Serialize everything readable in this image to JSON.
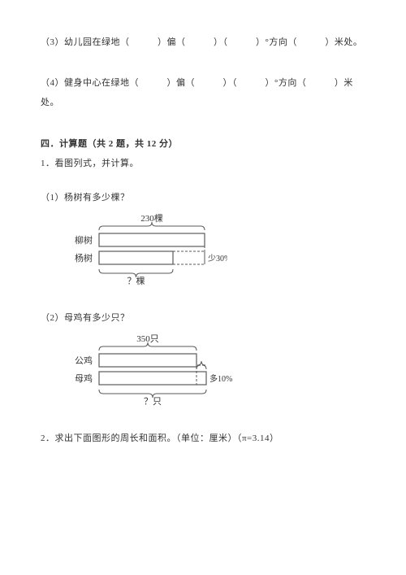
{
  "q3": {
    "prefix": "（3）幼儿园在绿地（",
    "seg1": "）偏（",
    "seg2": "）（",
    "seg3": "）°方向（",
    "seg4": "）米处。"
  },
  "q4": {
    "prefix": "（4）健身中心在绿地（",
    "seg1": "）偏（",
    "seg2": "）（",
    "seg3": "）°方向（",
    "seg4": "）米",
    "tail": "处。"
  },
  "section4": {
    "title": "四．计算题（共 2 题，共 12 分）",
    "p1": "1．看图列式，并计算。",
    "sub1": "（1）杨树有多少棵？",
    "sub2": "（2）母鸡有多少只？",
    "p2": "2．求出下面图形的周长和面积。（单位：厘米）（π=3.14）"
  },
  "diagram1": {
    "top_label": "230棵",
    "left1": "柳树",
    "left2": "杨树",
    "reduce": "少30%",
    "bottom": "？棵",
    "colors": {
      "line": "#5a5a5a",
      "text": "#333333",
      "fill": "#ffffff"
    }
  },
  "diagram2": {
    "top_label": "350只",
    "left1": "公鸡",
    "left2": "母鸡",
    "more": "多10%",
    "bottom": "？只",
    "colors": {
      "line": "#5a5a5a",
      "text": "#333333",
      "fill": "#ffffff"
    }
  }
}
